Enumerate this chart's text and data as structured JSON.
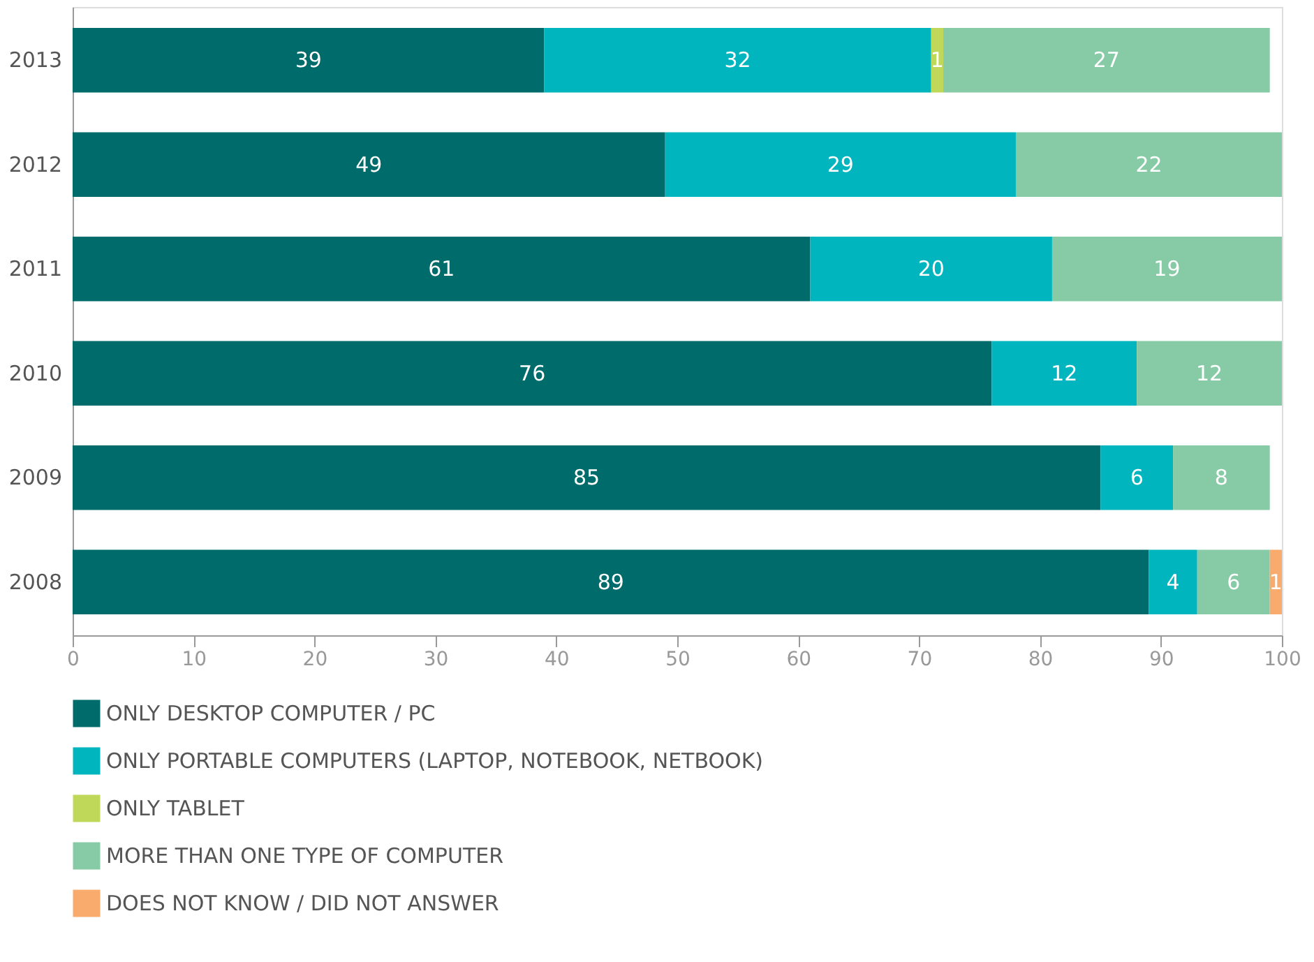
{
  "chart_data": {
    "type": "bar",
    "orientation": "horizontal",
    "stacked": true,
    "categories": [
      "2013",
      "2012",
      "2011",
      "2010",
      "2009",
      "2008"
    ],
    "series": [
      {
        "name": "ONLY DESKTOP COMPUTER / PC",
        "color": "#006b6b",
        "values": [
          39,
          49,
          61,
          76,
          85,
          89
        ]
      },
      {
        "name": "ONLY PORTABLE COMPUTERS (LAPTOP, NOTEBOOK, NETBOOK)",
        "color": "#00b5bd",
        "values": [
          32,
          29,
          20,
          12,
          6,
          4
        ]
      },
      {
        "name": "ONLY TABLET",
        "color": "#c0d85a",
        "values": [
          1,
          null,
          null,
          null,
          null,
          null
        ]
      },
      {
        "name": "MORE THAN ONE TYPE OF COMPUTER",
        "color": "#86cba5",
        "values": [
          27,
          22,
          19,
          12,
          8,
          6
        ]
      },
      {
        "name": "DOES NOT KNOW / DID NOT ANSWER",
        "color": "#f9ab6e",
        "values": [
          null,
          null,
          null,
          null,
          null,
          1
        ]
      }
    ],
    "xlim": [
      0,
      100
    ],
    "xticks": [
      0,
      10,
      20,
      30,
      40,
      50,
      60,
      70,
      80,
      90,
      100
    ],
    "data_labels": true,
    "legend": "bottom",
    "grid": false
  }
}
